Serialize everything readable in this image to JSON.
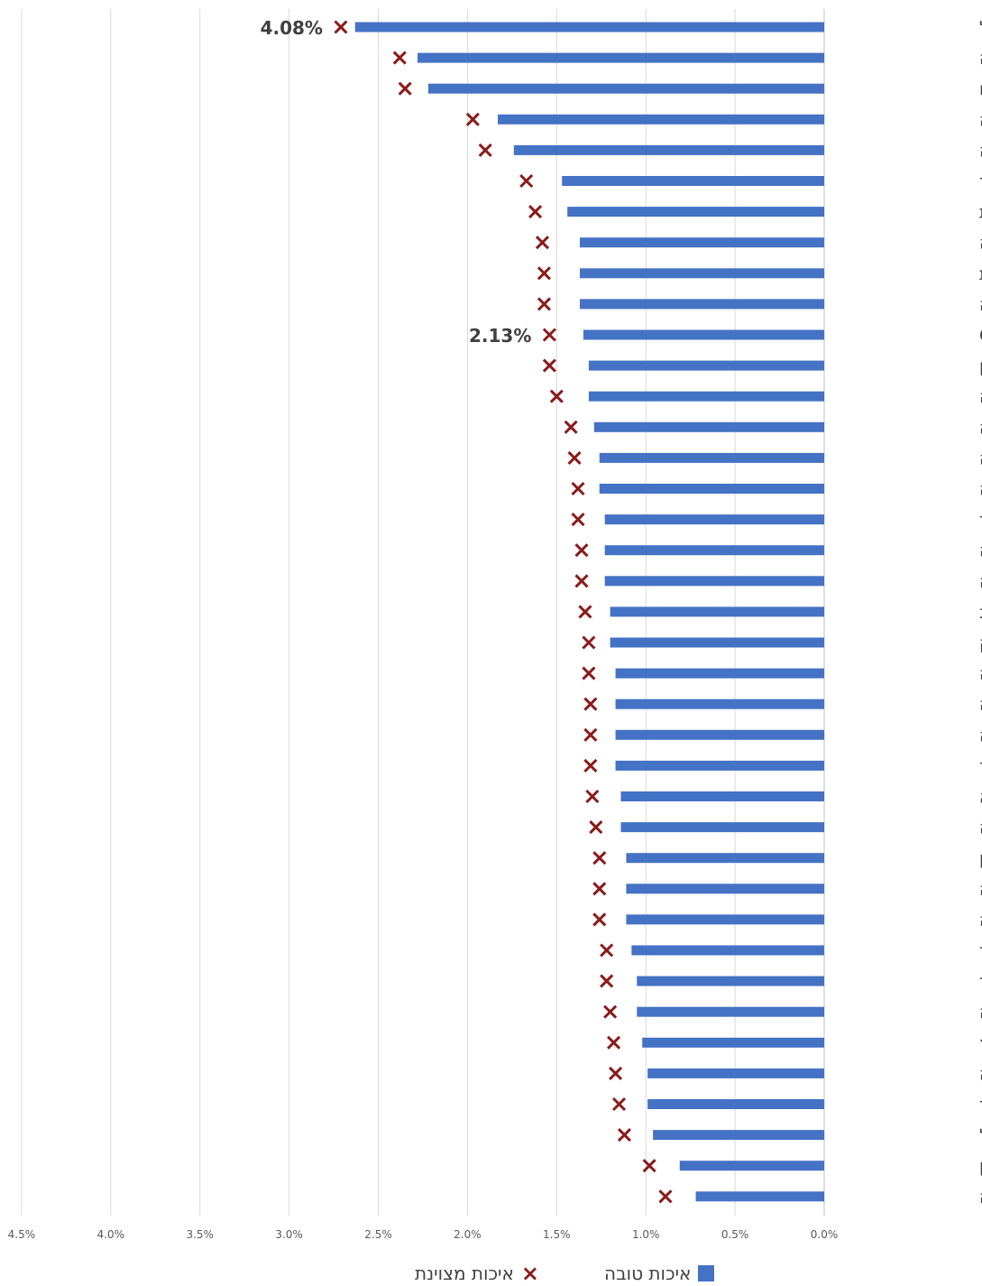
{
  "chart_data": {
    "type": "bar",
    "orientation": "horizontal",
    "x_direction": "right-to-left",
    "categories": [
      "ישראל",
      "טורקיה",
      "מקסיקו",
      "קולומביה",
      "קוסטה־ריקה",
      "אירלנד",
      "צרפת",
      "צ׳ילה",
      "ארצות־הברית",
      "בלגיה",
      "ממוצע OECD",
      "פולין",
      "אוסטרליה",
      "בריטניה",
      "שוודיה",
      "סלובקיה",
      "ניו־זילנד",
      "צ׳כיה",
      "לטביה",
      "לוקסמבורג",
      "דנמרק",
      "נורווגיה",
      "אסטוניה",
      "הונגריה",
      "איסלנד",
      "ליטא",
      "סלובניה",
      "יוון",
      "אוסטריה",
      "קנדה",
      "הולנד",
      "פינלנד",
      "גרמניה",
      "שווייץ",
      "איטליה",
      "ספרד",
      "פורטוגל",
      "יפן",
      "קוריאה"
    ],
    "series": [
      {
        "name": "איכות טובה",
        "marker": "bar",
        "color": "#4472c4",
        "values": [
          2.63,
          2.28,
          2.22,
          1.83,
          1.74,
          1.47,
          1.44,
          1.37,
          1.37,
          1.37,
          1.35,
          1.32,
          1.32,
          1.29,
          1.26,
          1.26,
          1.23,
          1.23,
          1.23,
          1.2,
          1.2,
          1.17,
          1.17,
          1.17,
          1.17,
          1.14,
          1.14,
          1.11,
          1.11,
          1.11,
          1.08,
          1.05,
          1.05,
          1.02,
          0.99,
          0.99,
          0.96,
          0.81,
          0.72
        ]
      },
      {
        "name": "איכות מצוינת",
        "marker": "x",
        "color": "#8b1a1a",
        "values": [
          2.71,
          2.38,
          2.35,
          1.97,
          1.9,
          1.67,
          1.62,
          1.58,
          1.57,
          1.57,
          1.54,
          1.54,
          1.5,
          1.42,
          1.4,
          1.38,
          1.38,
          1.36,
          1.36,
          1.34,
          1.32,
          1.32,
          1.31,
          1.31,
          1.31,
          1.3,
          1.28,
          1.26,
          1.26,
          1.26,
          1.22,
          1.22,
          1.2,
          1.18,
          1.17,
          1.15,
          1.12,
          0.98,
          0.89
        ]
      }
    ],
    "annotations": [
      {
        "category": "ישראל",
        "text": "4.08%"
      },
      {
        "category": "ממוצע OECD",
        "text": "2.13%"
      }
    ],
    "xlim": [
      0,
      4.5
    ],
    "x_ticks": [
      0,
      0.5,
      1.0,
      1.5,
      2.0,
      2.5,
      3.0,
      3.5,
      4.0,
      4.5
    ],
    "x_tick_labels": [
      "0.0%",
      "0.5%",
      "1.0%",
      "1.5%",
      "2.0%",
      "2.5%",
      "3.0%",
      "3.5%",
      "4.0%",
      "4.5%"
    ],
    "grid": true,
    "legend_position": "bottom"
  },
  "legend": [
    {
      "label": "איכות טובה",
      "symbol": "square",
      "color": "#4472c4"
    },
    {
      "label": "איכות מצוינת",
      "symbol": "×",
      "color": "#8b1a1a"
    }
  ]
}
